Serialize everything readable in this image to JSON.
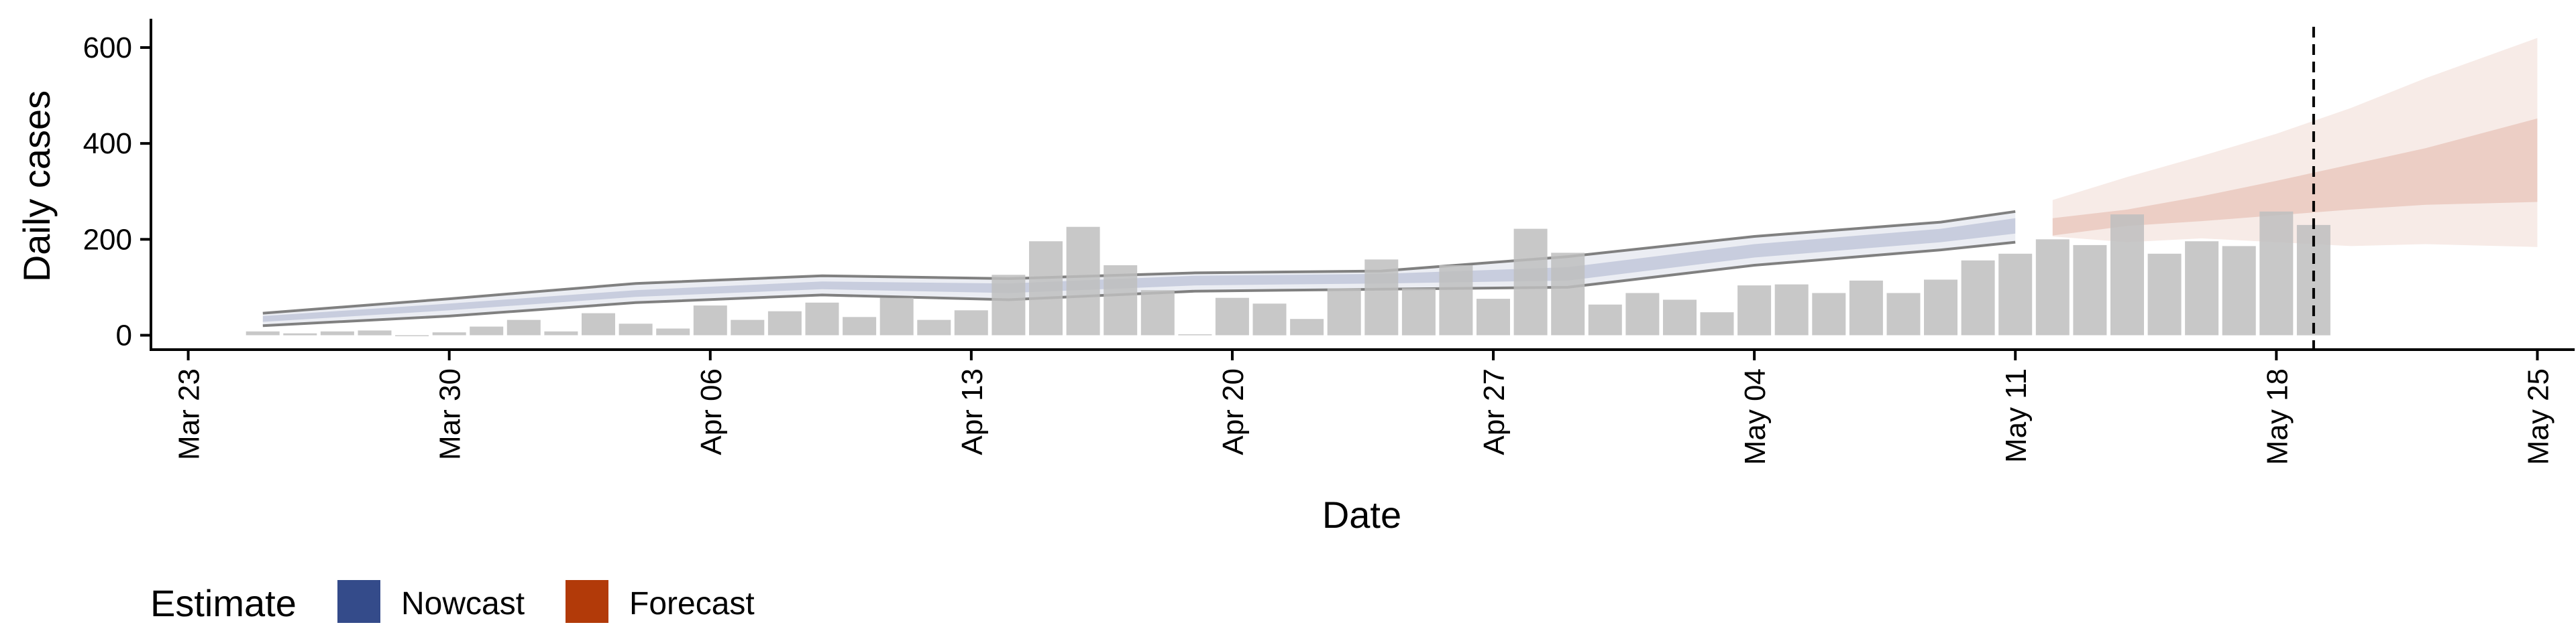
{
  "colors": {
    "bars": "#bebebe",
    "nowcast": "#3b4e8c",
    "forecast": "#b23a12",
    "outline": "#808080",
    "axis": "#000000"
  },
  "legend": {
    "title": "Estimate",
    "items": [
      {
        "label": "Nowcast",
        "color": "#344b8a"
      },
      {
        "label": "Forecast",
        "color": "#b23a09"
      }
    ]
  },
  "chart_data": {
    "type": "bar",
    "xlabel": "Date",
    "ylabel": "Daily cases",
    "xlim": [
      "2020-03-22",
      "2020-05-26"
    ],
    "ylim": [
      -30,
      660
    ],
    "x_ticks": [
      {
        "date": "2020-03-23",
        "label": "Mar 23"
      },
      {
        "date": "2020-03-30",
        "label": "Mar 30"
      },
      {
        "date": "2020-04-06",
        "label": "Apr 06"
      },
      {
        "date": "2020-04-13",
        "label": "Apr 13"
      },
      {
        "date": "2020-04-20",
        "label": "Apr 20"
      },
      {
        "date": "2020-04-27",
        "label": "Apr 27"
      },
      {
        "date": "2020-05-04",
        "label": "May 04"
      },
      {
        "date": "2020-05-11",
        "label": "May 11"
      },
      {
        "date": "2020-05-18",
        "label": "May 18"
      },
      {
        "date": "2020-05-25",
        "label": "May 25"
      }
    ],
    "y_ticks": [
      0,
      200,
      400,
      600
    ],
    "vline_date": "2020-05-19",
    "bars": {
      "dates": [
        "2020-03-25",
        "2020-03-26",
        "2020-03-27",
        "2020-03-28",
        "2020-03-29",
        "2020-03-30",
        "2020-03-31",
        "2020-04-01",
        "2020-04-02",
        "2020-04-03",
        "2020-04-04",
        "2020-04-05",
        "2020-04-06",
        "2020-04-07",
        "2020-04-08",
        "2020-04-09",
        "2020-04-10",
        "2020-04-11",
        "2020-04-12",
        "2020-04-13",
        "2020-04-14",
        "2020-04-15",
        "2020-04-16",
        "2020-04-17",
        "2020-04-18",
        "2020-04-19",
        "2020-04-20",
        "2020-04-21",
        "2020-04-22",
        "2020-04-23",
        "2020-04-24",
        "2020-04-25",
        "2020-04-26",
        "2020-04-27",
        "2020-04-28",
        "2020-04-29",
        "2020-04-30",
        "2020-05-01",
        "2020-05-02",
        "2020-05-03",
        "2020-05-04",
        "2020-05-05",
        "2020-05-06",
        "2020-05-07",
        "2020-05-08",
        "2020-05-09",
        "2020-05-10",
        "2020-05-11",
        "2020-05-12",
        "2020-05-13",
        "2020-05-14",
        "2020-05-15",
        "2020-05-16",
        "2020-05-17",
        "2020-05-18",
        "2020-05-19"
      ],
      "values": [
        8,
        4,
        8,
        10,
        0,
        6,
        18,
        32,
        8,
        46,
        24,
        14,
        62,
        32,
        50,
        68,
        38,
        78,
        32,
        52,
        126,
        196,
        226,
        146,
        94,
        2,
        78,
        66,
        34,
        98,
        158,
        98,
        146,
        76,
        222,
        172,
        64,
        88,
        74,
        48,
        104,
        106,
        88,
        114,
        88,
        116,
        156,
        170,
        200,
        188,
        252,
        170,
        196,
        186,
        258,
        230
      ]
    },
    "nowcast": {
      "dates": [
        "2020-03-25",
        "2020-03-30",
        "2020-04-04",
        "2020-04-09",
        "2020-04-14",
        "2020-04-19",
        "2020-04-24",
        "2020-04-29",
        "2020-05-04",
        "2020-05-09",
        "2020-05-11"
      ],
      "median": [
        34,
        58,
        86,
        104,
        98,
        114,
        118,
        128,
        176,
        208,
        228
      ],
      "inner_low": [
        28,
        52,
        80,
        96,
        88,
        104,
        108,
        114,
        162,
        194,
        212
      ],
      "inner_high": [
        40,
        66,
        94,
        112,
        108,
        124,
        128,
        142,
        190,
        222,
        244
      ],
      "outer_low": [
        20,
        40,
        68,
        84,
        74,
        92,
        96,
        100,
        146,
        178,
        194
      ],
      "outer_high": [
        46,
        76,
        108,
        124,
        118,
        130,
        134,
        164,
        206,
        236,
        258
      ]
    },
    "forecast": {
      "dates": [
        "2020-05-12",
        "2020-05-14",
        "2020-05-16",
        "2020-05-18",
        "2020-05-20",
        "2020-05-22",
        "2020-05-25"
      ],
      "inner_low": [
        208,
        228,
        238,
        250,
        262,
        272,
        278
      ],
      "inner_high": [
        244,
        262,
        290,
        322,
        356,
        390,
        452
      ],
      "outer_low": [
        206,
        194,
        202,
        194,
        186,
        190,
        184
      ],
      "outer_high": [
        282,
        330,
        374,
        420,
        474,
        536,
        620
      ]
    }
  }
}
